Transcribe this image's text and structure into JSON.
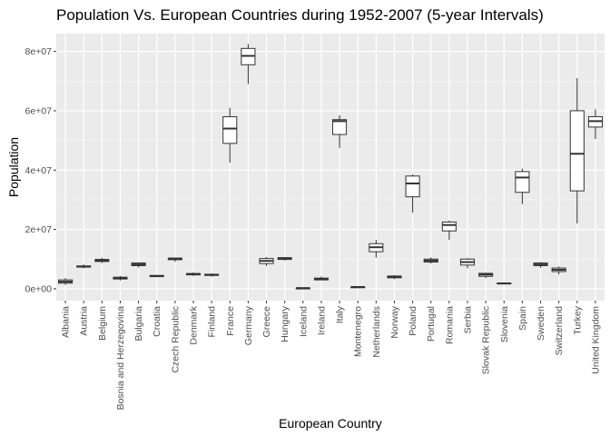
{
  "chart_data": {
    "type": "boxplot",
    "title": "Population Vs. European Countries during 1952-2007 (5-year Intervals)",
    "xlabel": "European Country",
    "ylabel": "Population",
    "ylim": [
      -4000000,
      86000000
    ],
    "yticks": [
      0,
      20000000,
      40000000,
      60000000,
      80000000
    ],
    "ytick_labels": [
      "0e+00",
      "2e+07",
      "4e+07",
      "6e+07",
      "8e+07"
    ],
    "grid": true,
    "legend": "none",
    "colors": {
      "panel_background": "#ebebeb",
      "grid_major": "#ffffff",
      "grid_minor": "#f5f5f5",
      "box_fill": "#ffffff",
      "box_line": "#333333"
    },
    "categories": [
      "Albania",
      "Austria",
      "Belgium",
      "Bosnia and Herzegovina",
      "Bulgaria",
      "Croatia",
      "Czech Republic",
      "Denmark",
      "Finland",
      "France",
      "Germany",
      "Greece",
      "Hungary",
      "Iceland",
      "Ireland",
      "Italy",
      "Montenegro",
      "Netherlands",
      "Norway",
      "Poland",
      "Portugal",
      "Romania",
      "Serbia",
      "Slovak Republic",
      "Slovenia",
      "Spain",
      "Sweden",
      "Switzerland",
      "Turkey",
      "United Kingdom"
    ],
    "boxes": [
      {
        "min": 1300000,
        "q1": 1900000,
        "median": 2400000,
        "q3": 3000000,
        "max": 3600000
      },
      {
        "min": 6900000,
        "q1": 7300000,
        "median": 7500000,
        "q3": 7700000,
        "max": 8200000
      },
      {
        "min": 8700000,
        "q1": 9200000,
        "median": 9600000,
        "q3": 9900000,
        "max": 10400000
      },
      {
        "min": 2800000,
        "q1": 3300000,
        "median": 3600000,
        "q3": 3900000,
        "max": 4300000
      },
      {
        "min": 7200000,
        "q1": 7800000,
        "median": 8200000,
        "q3": 8700000,
        "max": 8900000
      },
      {
        "min": 3900000,
        "q1": 4100000,
        "median": 4300000,
        "q3": 4500000,
        "max": 4600000
      },
      {
        "min": 9100000,
        "q1": 9800000,
        "median": 10200000,
        "q3": 10300000,
        "max": 10400000
      },
      {
        "min": 4300000,
        "q1": 4700000,
        "median": 5000000,
        "q3": 5100000,
        "max": 5500000
      },
      {
        "min": 4100000,
        "q1": 4500000,
        "median": 4700000,
        "q3": 4900000,
        "max": 5200000
      },
      {
        "min": 42500000,
        "q1": 49000000,
        "median": 54000000,
        "q3": 58000000,
        "max": 61000000
      },
      {
        "min": 69000000,
        "q1": 75500000,
        "median": 78500000,
        "q3": 81000000,
        "max": 82500000
      },
      {
        "min": 7700000,
        "q1": 8500000,
        "median": 9400000,
        "q3": 10200000,
        "max": 10700000
      },
      {
        "min": 9500000,
        "q1": 9900000,
        "median": 10200000,
        "q3": 10500000,
        "max": 10700000
      },
      {
        "min": 150000,
        "q1": 200000,
        "median": 240000,
        "q3": 270000,
        "max": 300000
      },
      {
        "min": 2900000,
        "q1": 3000000,
        "median": 3300000,
        "q3": 3600000,
        "max": 4100000
      },
      {
        "min": 47500000,
        "q1": 52000000,
        "median": 56500000,
        "q3": 57000000,
        "max": 58500000
      },
      {
        "min": 400000,
        "q1": 550000,
        "median": 600000,
        "q3": 650000,
        "max": 700000
      },
      {
        "min": 10500000,
        "q1": 12500000,
        "median": 14000000,
        "q3": 15200000,
        "max": 16500000
      },
      {
        "min": 3300000,
        "q1": 3700000,
        "median": 4000000,
        "q3": 4300000,
        "max": 4600000
      },
      {
        "min": 25700000,
        "q1": 31000000,
        "median": 35500000,
        "q3": 38000000,
        "max": 38500000
      },
      {
        "min": 8500000,
        "q1": 9000000,
        "median": 9500000,
        "q3": 10000000,
        "max": 10600000
      },
      {
        "min": 16500000,
        "q1": 19500000,
        "median": 21500000,
        "q3": 22500000,
        "max": 23000000
      },
      {
        "min": 6900000,
        "q1": 8000000,
        "median": 9000000,
        "q3": 10000000,
        "max": 10400000
      },
      {
        "min": 3600000,
        "q1": 4200000,
        "median": 4800000,
        "q3": 5200000,
        "max": 5400000
      },
      {
        "min": 1500000,
        "q1": 1700000,
        "median": 1800000,
        "q3": 1950000,
        "max": 2000000
      },
      {
        "min": 28500000,
        "q1": 32500000,
        "median": 37500000,
        "q3": 39500000,
        "max": 40500000
      },
      {
        "min": 7100000,
        "q1": 7800000,
        "median": 8200000,
        "q3": 8700000,
        "max": 9000000
      },
      {
        "min": 4800000,
        "q1": 5800000,
        "median": 6400000,
        "q3": 7000000,
        "max": 7500000
      },
      {
        "min": 22000000,
        "q1": 33000000,
        "median": 45500000,
        "q3": 60000000,
        "max": 71000000
      },
      {
        "min": 50500000,
        "q1": 54500000,
        "median": 56500000,
        "q3": 58000000,
        "max": 60500000
      }
    ]
  }
}
